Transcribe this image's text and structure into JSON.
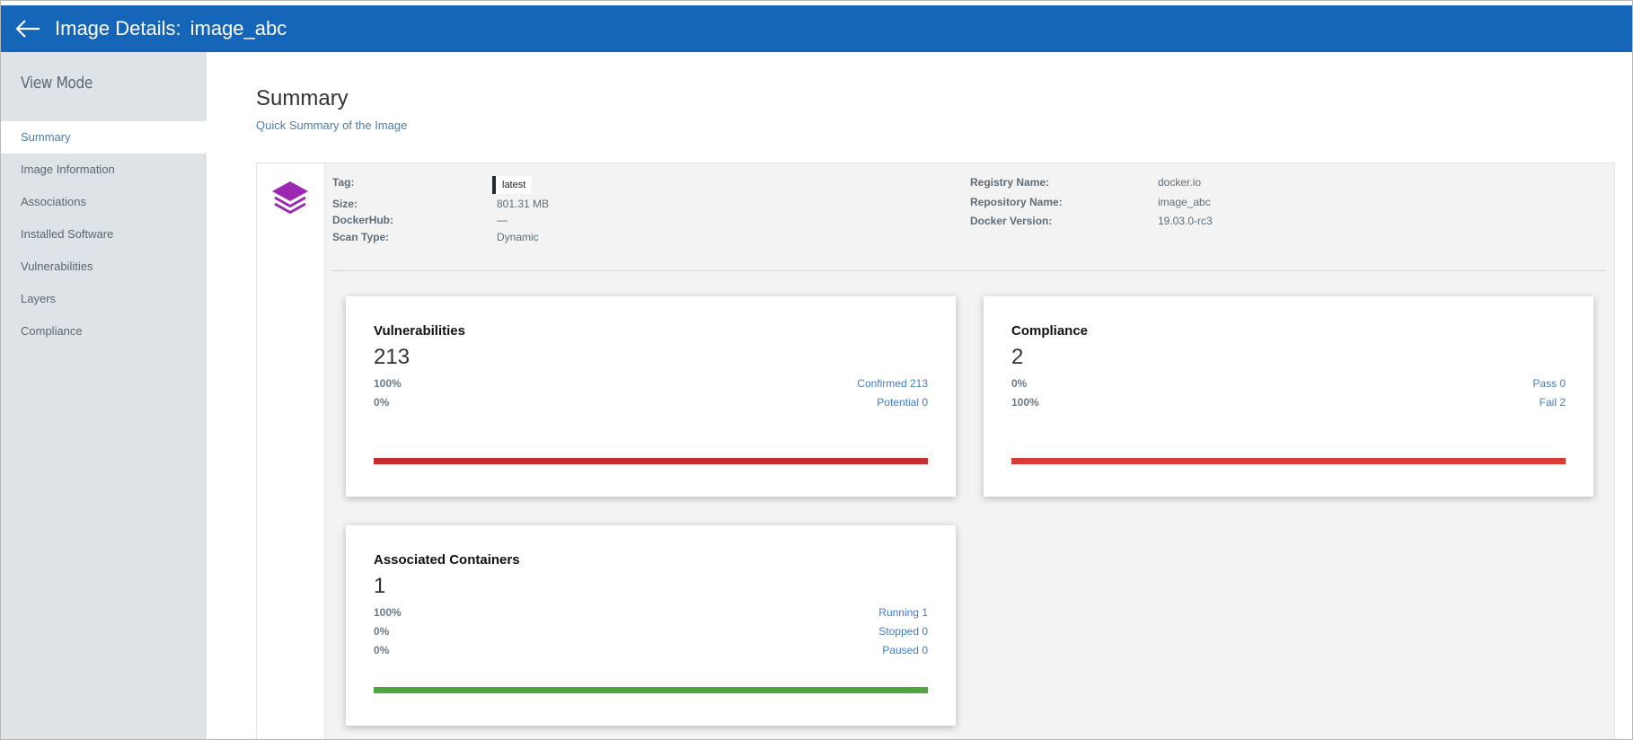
{
  "header": {
    "title_label": "Image Details:",
    "image_name": "image_abc",
    "color": "#1565b8"
  },
  "sidebar": {
    "title": "View Mode",
    "items": [
      {
        "label": "Summary",
        "active": true
      },
      {
        "label": "Image Information"
      },
      {
        "label": "Associations"
      },
      {
        "label": "Installed Software"
      },
      {
        "label": "Vulnerabilities"
      },
      {
        "label": "Layers"
      },
      {
        "label": "Compliance"
      }
    ]
  },
  "summary": {
    "title": "Summary",
    "subtitle": "Quick Summary of the Image"
  },
  "details": {
    "tag": {
      "label": "Tag:",
      "value": "latest"
    },
    "size": {
      "label": "Size:",
      "value": "801.31 MB"
    },
    "dockerhub": {
      "label": "DockerHub:",
      "value": "—"
    },
    "scan_type": {
      "label": "Scan Type:",
      "value": "Dynamic"
    },
    "registry_name": {
      "label": "Registry Name:",
      "value": "docker.io"
    },
    "repository_name": {
      "label": "Repository Name:",
      "value": "image_abc"
    },
    "docker_version": {
      "label": "Docker Version:",
      "value": "19.03.0-rc3"
    }
  },
  "cards": {
    "vulnerabilities": {
      "title": "Vulnerabilities",
      "count": "213",
      "rows": [
        {
          "pct": "100%",
          "label": "Confirmed 213"
        },
        {
          "pct": "0%",
          "label": "Potential 0"
        }
      ],
      "bar_color": "#c62f2f"
    },
    "compliance": {
      "title": "Compliance",
      "count": "2",
      "rows": [
        {
          "pct": "0%",
          "label": "Pass 0"
        },
        {
          "pct": "100%",
          "label": "Fail 2"
        }
      ],
      "bar_color": "#d93b35"
    },
    "containers": {
      "title": "Associated Containers",
      "count": "1",
      "rows": [
        {
          "pct": "100%",
          "label": "Running 1"
        },
        {
          "pct": "0%",
          "label": "Stopped 0"
        },
        {
          "pct": "0%",
          "label": "Paused 0"
        }
      ],
      "bar_color": "#4ea43f"
    }
  },
  "icons": {
    "back": "arrow-left-icon",
    "image": "layers-icon",
    "image_icon_color": "#9c27b0"
  }
}
